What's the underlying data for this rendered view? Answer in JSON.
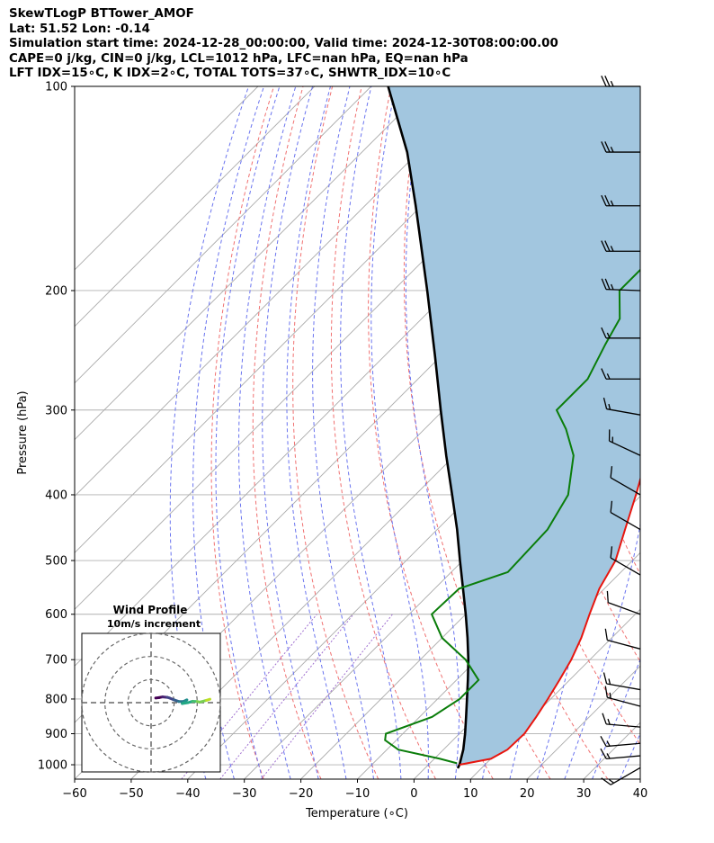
{
  "header": {
    "line1": "SkewTLogP BTTower_AMOF",
    "line2": "Lat: 51.52   Lon: -0.14",
    "line3": "Simulation start time: 2024-12-28_00:00:00, Valid time: 2024-12-30T08:00:00.00",
    "line4": "CAPE=0 j/kg, CIN=0 j/kg, LCL=1012 hPa, LFC=nan hPa, EQ=nan hPa",
    "line5": "LFT IDX=15∘C, K IDX=2∘C, TOTAL TOTS=37∘C, SHWTR_IDX=10∘C"
  },
  "chart_data": {
    "type": "skew-t log-p",
    "xlabel": "Temperature (∘C)",
    "ylabel": "Pressure (hPa)",
    "xlim": [
      -60,
      40
    ],
    "ylim": [
      1050,
      100
    ],
    "yscale": "log",
    "grid": true,
    "xticks": [
      -60,
      -50,
      -40,
      -30,
      -20,
      -10,
      0,
      10,
      20,
      30,
      40
    ],
    "yticks": [
      100,
      200,
      300,
      400,
      500,
      600,
      700,
      800,
      900,
      1000
    ],
    "colors": {
      "temperature": "#e8150e",
      "dewpoint": "#0a7d0a",
      "parcel": "#000000",
      "shading": "#a2c6df",
      "isotherm": "#aaaaaa",
      "dry_adiabat": "#f07070",
      "moist_adiabat": "#6a74ef",
      "mixing_ratio": "#a070d0"
    },
    "temperature": [
      {
        "p": 1000,
        "t": 5.5
      },
      {
        "p": 980,
        "t": 10
      },
      {
        "p": 950,
        "t": 11.3
      },
      {
        "p": 900,
        "t": 11.5
      },
      {
        "p": 850,
        "t": 10.6
      },
      {
        "p": 800,
        "t": 9.5
      },
      {
        "p": 750,
        "t": 8.2
      },
      {
        "p": 700,
        "t": 6.7
      },
      {
        "p": 650,
        "t": 4.6
      },
      {
        "p": 600,
        "t": 1.9
      },
      {
        "p": 550,
        "t": -0.9
      },
      {
        "p": 500,
        "t": -3
      },
      {
        "p": 450,
        "t": -6.8
      },
      {
        "p": 400,
        "t": -11
      },
      {
        "p": 350,
        "t": -16
      },
      {
        "p": 300,
        "t": -22.5
      },
      {
        "p": 250,
        "t": -30
      },
      {
        "p": 225,
        "t": -35.5
      },
      {
        "p": 200,
        "t": -41
      },
      {
        "p": 185,
        "t": -43
      },
      {
        "p": 170,
        "t": -43.5
      },
      {
        "p": 160,
        "t": -43.5
      },
      {
        "p": 150,
        "t": -44
      },
      {
        "p": 140,
        "t": -45
      },
      {
        "p": 130,
        "t": -47
      },
      {
        "p": 120,
        "t": -50
      },
      {
        "p": 110,
        "t": -54.5
      },
      {
        "p": 100,
        "t": -59
      }
    ],
    "dewpoint": [
      {
        "p": 995,
        "t": 4.8
      },
      {
        "p": 980,
        "t": 1
      },
      {
        "p": 950,
        "t": -8
      },
      {
        "p": 920,
        "t": -12
      },
      {
        "p": 900,
        "t": -13
      },
      {
        "p": 850,
        "t": -7.8
      },
      {
        "p": 800,
        "t": -6.1
      },
      {
        "p": 750,
        "t": -6.1
      },
      {
        "p": 700,
        "t": -12
      },
      {
        "p": 650,
        "t": -20
      },
      {
        "p": 600,
        "t": -26
      },
      {
        "p": 550,
        "t": -25.7
      },
      {
        "p": 520,
        "t": -20
      },
      {
        "p": 450,
        "t": -20.5
      },
      {
        "p": 400,
        "t": -23
      },
      {
        "p": 350,
        "t": -29
      },
      {
        "p": 320,
        "t": -35
      },
      {
        "p": 300,
        "t": -40
      },
      {
        "p": 270,
        "t": -40
      },
      {
        "p": 240,
        "t": -43
      },
      {
        "p": 220,
        "t": -45
      },
      {
        "p": 200,
        "t": -50
      },
      {
        "p": 180,
        "t": -50
      },
      {
        "p": 165,
        "t": -48
      },
      {
        "p": 150,
        "t": -50.5
      },
      {
        "p": 140,
        "t": -54
      },
      {
        "p": 130,
        "t": -58
      },
      {
        "p": 115,
        "t": -65
      },
      {
        "p": 100,
        "t": -73
      }
    ],
    "parcel": [
      {
        "p": 1012,
        "t": 5.8
      },
      {
        "p": 1000,
        "t": 5.5
      },
      {
        "p": 950,
        "t": 3.5
      },
      {
        "p": 900,
        "t": 1
      },
      {
        "p": 850,
        "t": -1.8
      },
      {
        "p": 800,
        "t": -4.8
      },
      {
        "p": 750,
        "t": -8
      },
      {
        "p": 700,
        "t": -11.5
      },
      {
        "p": 650,
        "t": -15.5
      },
      {
        "p": 600,
        "t": -20
      },
      {
        "p": 550,
        "t": -25
      },
      {
        "p": 500,
        "t": -30.5
      },
      {
        "p": 450,
        "t": -36.5
      },
      {
        "p": 400,
        "t": -43.5
      },
      {
        "p": 350,
        "t": -51.5
      },
      {
        "p": 300,
        "t": -60.5
      },
      {
        "p": 250,
        "t": -71
      },
      {
        "p": 200,
        "t": -84
      },
      {
        "p": 150,
        "t": -101
      },
      {
        "p": 125,
        "t": -112
      },
      {
        "p": 100,
        "t": -127
      }
    ],
    "wind_barbs": [
      {
        "p": 100,
        "speed": 25,
        "dir": 270
      },
      {
        "p": 125,
        "speed": 25,
        "dir": 270
      },
      {
        "p": 150,
        "speed": 25,
        "dir": 270
      },
      {
        "p": 175,
        "speed": 25,
        "dir": 270
      },
      {
        "p": 200,
        "speed": 25,
        "dir": 272
      },
      {
        "p": 235,
        "speed": 15,
        "dir": 270
      },
      {
        "p": 270,
        "speed": 15,
        "dir": 270
      },
      {
        "p": 305,
        "speed": 15,
        "dir": 280
      },
      {
        "p": 350,
        "speed": 15,
        "dir": 295
      },
      {
        "p": 400,
        "speed": 10,
        "dir": 300
      },
      {
        "p": 450,
        "speed": 10,
        "dir": 300
      },
      {
        "p": 525,
        "speed": 10,
        "dir": 300
      },
      {
        "p": 600,
        "speed": 10,
        "dir": 290
      },
      {
        "p": 675,
        "speed": 10,
        "dir": 285
      },
      {
        "p": 775,
        "speed": 15,
        "dir": 280
      },
      {
        "p": 820,
        "speed": 15,
        "dir": 285
      },
      {
        "p": 880,
        "speed": 15,
        "dir": 275
      },
      {
        "p": 930,
        "speed": 15,
        "dir": 265
      },
      {
        "p": 970,
        "speed": 15,
        "dir": 265
      },
      {
        "p": 1010,
        "speed": 15,
        "dir": 240
      }
    ],
    "hodograph": {
      "title": "Wind Profile",
      "subtitle": "10m/s increment",
      "rings": [
        10,
        20,
        30
      ],
      "points": [
        {
          "u": 2,
          "v": 2
        },
        {
          "u": 3.5,
          "v": 2.2
        },
        {
          "u": 5,
          "v": 2.5
        },
        {
          "u": 7,
          "v": 2.3
        },
        {
          "u": 8,
          "v": 2
        },
        {
          "u": 10,
          "v": 1.2
        },
        {
          "u": 12,
          "v": 0.5
        },
        {
          "u": 14,
          "v": 0.5
        },
        {
          "u": 15.5,
          "v": 1.2
        },
        {
          "u": 13.5,
          "v": -0.4
        },
        {
          "u": 16,
          "v": 0
        },
        {
          "u": 18,
          "v": 0.6
        },
        {
          "u": 20,
          "v": 0.5
        },
        {
          "u": 21,
          "v": 0.2
        },
        {
          "u": 24,
          "v": 1.0
        },
        {
          "u": 25.5,
          "v": 1.5
        }
      ]
    }
  }
}
